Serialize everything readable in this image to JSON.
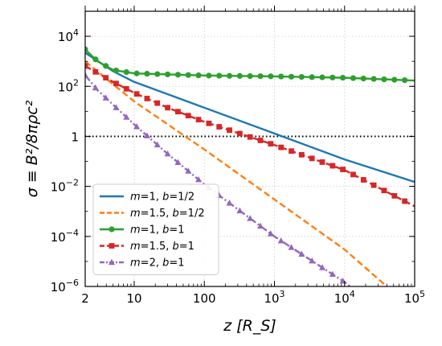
{
  "chart_data": {
    "type": "line",
    "title": "",
    "xlabel": "z [R_S]",
    "ylabel": "σ ≡ B²/8πρc²",
    "xscale": "log",
    "yscale": "log",
    "xlim": [
      2,
      100000
    ],
    "ylim": [
      1e-06,
      100000
    ],
    "grid": true,
    "legend_position": "lower-left",
    "x_ticks": [
      {
        "value": 2,
        "label": "2"
      },
      {
        "value": 10,
        "label": "10"
      },
      {
        "value": 100,
        "label": "100"
      },
      {
        "value": 1000,
        "base": "10",
        "exp": "3"
      },
      {
        "value": 10000,
        "base": "10",
        "exp": "4"
      },
      {
        "value": 100000,
        "base": "10",
        "exp": "5"
      }
    ],
    "y_ticks": [
      {
        "value": 1e-06,
        "base": "10",
        "exp": "−6"
      },
      {
        "value": 0.0001,
        "base": "10",
        "exp": "−4"
      },
      {
        "value": 0.01,
        "base": "10",
        "exp": "−2"
      },
      {
        "value": 1,
        "label": "1"
      },
      {
        "value": 100,
        "base": "10",
        "exp": "2"
      },
      {
        "value": 10000,
        "base": "10",
        "exp": "4"
      }
    ],
    "reference_line": {
      "y": 1,
      "style": "dotted",
      "color": "#000000"
    },
    "series": [
      {
        "m": "1",
        "b": "1/2",
        "color": "#1f77b4",
        "dash": "solid",
        "marker": "none",
        "points": [
          [
            2,
            2200
          ],
          [
            5,
            400
          ],
          [
            10,
            150
          ],
          [
            100,
            14
          ],
          [
            1000,
            1.3
          ],
          [
            10000,
            0.12
          ],
          [
            100000,
            0.015
          ]
        ]
      },
      {
        "m": "1.5",
        "b": "1/2",
        "color": "#ff7f0e",
        "dash": "dashed",
        "marker": "none",
        "points": [
          [
            2,
            1000
          ],
          [
            5,
            120
          ],
          [
            10,
            25
          ],
          [
            100,
            0.3
          ],
          [
            1000,
            0.003
          ],
          [
            10000,
            3e-05
          ],
          [
            40000,
            1e-06
          ]
        ]
      },
      {
        "m": "1",
        "b": "1",
        "color": "#2ca02c",
        "dash": "solid",
        "marker": "circle",
        "points": [
          [
            2,
            3000
          ],
          [
            3,
            1000
          ],
          [
            5,
            450
          ],
          [
            10,
            330
          ],
          [
            100,
            270
          ],
          [
            1000,
            250
          ],
          [
            10000,
            220
          ],
          [
            100000,
            170
          ]
        ]
      },
      {
        "m": "1.5",
        "b": "1",
        "color": "#d62728",
        "dash": "dashed",
        "marker": "square",
        "points": [
          [
            2,
            650
          ],
          [
            5,
            150
          ],
          [
            10,
            55
          ],
          [
            30,
            14
          ],
          [
            100,
            3.8
          ],
          [
            1000,
            0.45
          ],
          [
            3000,
            0.15
          ],
          [
            10000,
            0.045
          ],
          [
            100000,
            0.0016
          ]
        ]
      },
      {
        "m": "2",
        "b": "1",
        "color": "#9467bd",
        "dash": "dashdot",
        "marker": "triangle",
        "points": [
          [
            2,
            280
          ],
          [
            3,
            70
          ],
          [
            10,
            3
          ],
          [
            30,
            0.2
          ],
          [
            100,
            0.012
          ],
          [
            1000,
            0.0001
          ],
          [
            10000,
            1.5e-06
          ],
          [
            12000,
            1e-06
          ]
        ]
      }
    ]
  }
}
